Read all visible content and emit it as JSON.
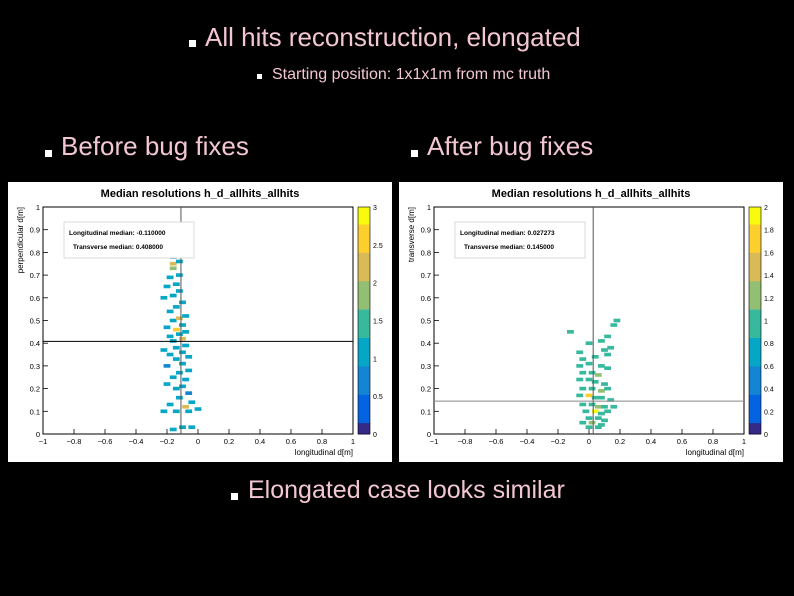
{
  "slide": {
    "title": "All hits reconstruction, elongated",
    "subtitle": "Starting position: 1x1x1m from mc truth",
    "label_before": "Before bug fixes",
    "label_after": "After bug fixes",
    "conclusion": "Elongated case looks similar"
  },
  "colors": {
    "background": "#000000",
    "text": "#f2c6d2",
    "bullet": "#ffffff",
    "palette": [
      "#352a87",
      "#0363e1",
      "#1485d4",
      "#06a7c6",
      "#38b99e",
      "#92bf73",
      "#d9ba56",
      "#fcce2e",
      "#f9fb0e"
    ]
  },
  "chart_data": [
    {
      "type": "heatmap",
      "title": "Median resolutions h_d_allhits_allhits",
      "xlabel": "longitudinal d[m]",
      "ylabel": "perpendicular d[m]",
      "xlim": [
        -1,
        1
      ],
      "ylim": [
        0,
        1
      ],
      "zlim": [
        0,
        3
      ],
      "x_ticks": [
        "−1",
        "−0.8",
        "−0.6",
        "−0.4",
        "−0.2",
        "0",
        "0.2",
        "0.4",
        "0.6",
        "0.8",
        "1"
      ],
      "y_ticks": [
        "0",
        "0.1",
        "0.2",
        "0.3",
        "0.4",
        "0.5",
        "0.6",
        "0.7",
        "0.8",
        "0.9",
        "1"
      ],
      "z_ticks": [
        "0",
        "0.5",
        "1",
        "1.5",
        "2",
        "2.5",
        "3"
      ],
      "annotations": [
        "Longitudinal median: -0.110000",
        "Transverse median: 0.408000"
      ],
      "median_x": -0.11,
      "median_y": 0.408,
      "cells": [
        [
          -0.16,
          0.02,
          1.2
        ],
        [
          -0.1,
          0.03,
          1.0
        ],
        [
          -0.04,
          0.03,
          1.2
        ],
        [
          -0.22,
          0.1,
          1.0
        ],
        [
          -0.06,
          0.1,
          1.2
        ],
        [
          0.0,
          0.11,
          1.0
        ],
        [
          -0.08,
          0.12,
          2.3
        ],
        [
          -0.14,
          0.1,
          1.1
        ],
        [
          -0.18,
          0.13,
          1.0
        ],
        [
          -0.04,
          0.14,
          1.1
        ],
        [
          -0.12,
          0.16,
          1.0
        ],
        [
          -0.06,
          0.18,
          0.9
        ],
        [
          -0.14,
          0.2,
          1.0
        ],
        [
          -0.1,
          0.21,
          1.2
        ],
        [
          -0.2,
          0.22,
          1.0
        ],
        [
          -0.08,
          0.24,
          1.1
        ],
        [
          -0.16,
          0.25,
          1.0
        ],
        [
          -0.12,
          0.27,
          1.0
        ],
        [
          -0.06,
          0.28,
          1.0
        ],
        [
          -0.2,
          0.3,
          0.9
        ],
        [
          -0.1,
          0.31,
          1.0
        ],
        [
          -0.14,
          0.33,
          1.2
        ],
        [
          -0.06,
          0.34,
          1.0
        ],
        [
          -0.18,
          0.35,
          1.1
        ],
        [
          -0.1,
          0.36,
          1.0
        ],
        [
          -0.22,
          0.37,
          1.0
        ],
        [
          -0.14,
          0.38,
          1.0
        ],
        [
          -0.08,
          0.39,
          1.1
        ],
        [
          -0.16,
          0.41,
          1.0
        ],
        [
          -0.1,
          0.42,
          2.4
        ],
        [
          -0.18,
          0.43,
          1.1
        ],
        [
          -0.12,
          0.44,
          1.0
        ],
        [
          -0.08,
          0.45,
          1.0
        ],
        [
          -0.14,
          0.46,
          2.6
        ],
        [
          -0.2,
          0.47,
          1.0
        ],
        [
          -0.1,
          0.48,
          1.0
        ],
        [
          -0.16,
          0.5,
          1.2
        ],
        [
          -0.12,
          0.51,
          2.2
        ],
        [
          -0.08,
          0.52,
          1.0
        ],
        [
          -0.18,
          0.54,
          1.0
        ],
        [
          -0.14,
          0.56,
          1.1
        ],
        [
          -0.1,
          0.58,
          1.0
        ],
        [
          -0.22,
          0.6,
          1.0
        ],
        [
          -0.16,
          0.61,
          1.0
        ],
        [
          -0.12,
          0.63,
          1.2
        ],
        [
          -0.2,
          0.65,
          1.0
        ],
        [
          -0.14,
          0.66,
          1.0
        ],
        [
          -0.18,
          0.69,
          1.1
        ],
        [
          -0.12,
          0.7,
          1.0
        ],
        [
          -0.16,
          0.73,
          1.9
        ],
        [
          -0.16,
          0.75,
          2.2
        ],
        [
          -0.12,
          0.76,
          1.0
        ],
        [
          -0.16,
          0.78,
          1.0
        ],
        [
          -0.14,
          0.8,
          1.1
        ]
      ]
    },
    {
      "type": "heatmap",
      "title": "Median resolutions h_d_allhits_allhits",
      "xlabel": "longitudinal d[m]",
      "ylabel": "transverse d[m]",
      "xlim": [
        -1,
        1
      ],
      "ylim": [
        0,
        1
      ],
      "zlim": [
        0,
        2
      ],
      "x_ticks": [
        "−1",
        "−0.8",
        "−0.6",
        "−0.4",
        "−0.2",
        "0",
        "0.2",
        "0.4",
        "0.6",
        "0.8",
        "1"
      ],
      "y_ticks": [
        "0",
        "0.1",
        "0.2",
        "0.3",
        "0.4",
        "0.5",
        "0.6",
        "0.7",
        "0.8",
        "0.9",
        "1"
      ],
      "z_ticks": [
        "0",
        "0.2",
        "0.4",
        "0.6",
        "0.8",
        "1",
        "1.2",
        "1.4",
        "1.6",
        "1.8",
        "2"
      ],
      "annotations": [
        "Longitudinal median: 0.027273",
        "Transverse median: 0.145000"
      ],
      "median_x": 0.027,
      "median_y": 0.145,
      "cells": [
        [
          -0.12,
          0.45,
          1.0
        ],
        [
          0.0,
          0.4,
          1.0
        ],
        [
          0.08,
          0.41,
          1.0
        ],
        [
          0.12,
          0.43,
          1.0
        ],
        [
          0.16,
          0.48,
          1.0
        ],
        [
          0.18,
          0.5,
          0.9
        ],
        [
          -0.06,
          0.36,
          1.0
        ],
        [
          0.1,
          0.37,
          1.0
        ],
        [
          0.14,
          0.38,
          1.1
        ],
        [
          -0.04,
          0.33,
          1.0
        ],
        [
          0.04,
          0.34,
          1.0
        ],
        [
          0.12,
          0.35,
          1.0
        ],
        [
          -0.06,
          0.3,
          1.0
        ],
        [
          0.0,
          0.31,
          1.0
        ],
        [
          0.08,
          0.3,
          1.0
        ],
        [
          0.12,
          0.29,
          1.0
        ],
        [
          -0.04,
          0.27,
          1.0
        ],
        [
          0.02,
          0.27,
          1.1
        ],
        [
          0.06,
          0.26,
          1.2
        ],
        [
          -0.06,
          0.24,
          1.0
        ],
        [
          0.0,
          0.24,
          1.0
        ],
        [
          0.04,
          0.23,
          1.0
        ],
        [
          0.1,
          0.22,
          1.0
        ],
        [
          -0.04,
          0.2,
          1.0
        ],
        [
          0.02,
          0.2,
          1.0
        ],
        [
          0.08,
          0.19,
          1.2
        ],
        [
          0.12,
          0.2,
          1.0
        ],
        [
          -0.06,
          0.17,
          1.0
        ],
        [
          0.0,
          0.17,
          1.8
        ],
        [
          0.04,
          0.16,
          1.0
        ],
        [
          0.08,
          0.16,
          1.0
        ],
        [
          0.14,
          0.15,
          1.0
        ],
        [
          -0.04,
          0.13,
          1.0
        ],
        [
          0.02,
          0.13,
          1.0
        ],
        [
          0.06,
          0.12,
          1.2
        ],
        [
          0.1,
          0.12,
          1.0
        ],
        [
          0.16,
          0.12,
          1.0
        ],
        [
          -0.02,
          0.1,
          1.0
        ],
        [
          0.04,
          0.1,
          1.9
        ],
        [
          0.08,
          0.09,
          1.0
        ],
        [
          0.12,
          0.1,
          1.0
        ],
        [
          0.0,
          0.07,
          1.0
        ],
        [
          0.06,
          0.07,
          1.0
        ],
        [
          0.1,
          0.06,
          1.1
        ],
        [
          -0.04,
          0.05,
          1.0
        ],
        [
          0.02,
          0.05,
          1.2
        ],
        [
          0.08,
          0.04,
          1.0
        ],
        [
          0.0,
          0.03,
          1.0
        ],
        [
          0.06,
          0.03,
          1.0
        ]
      ]
    }
  ]
}
